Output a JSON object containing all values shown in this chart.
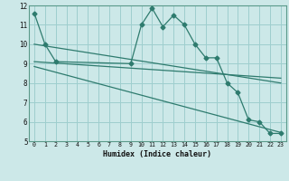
{
  "xlabel": "Humidex (Indice chaleur)",
  "bg_color": "#cce8e8",
  "line_color": "#2e7b6e",
  "grid_color": "#9ecece",
  "xlim": [
    -0.5,
    23.5
  ],
  "ylim": [
    5,
    12
  ],
  "yticks": [
    5,
    6,
    7,
    8,
    9,
    10,
    11,
    12
  ],
  "xticks": [
    0,
    1,
    2,
    3,
    4,
    5,
    6,
    7,
    8,
    9,
    10,
    11,
    12,
    13,
    14,
    15,
    16,
    17,
    18,
    19,
    20,
    21,
    22,
    23
  ],
  "line1": {
    "x": [
      0,
      1,
      2,
      9,
      10,
      11,
      12,
      13,
      14,
      15,
      16,
      17,
      18,
      19,
      20,
      21,
      22,
      23
    ],
    "y": [
      11.6,
      10.0,
      9.1,
      9.0,
      11.0,
      11.85,
      10.9,
      11.5,
      11.0,
      10.0,
      9.3,
      9.3,
      8.0,
      7.5,
      6.1,
      6.0,
      5.4,
      5.4
    ]
  },
  "line2": {
    "x": [
      0,
      23
    ],
    "y": [
      10.0,
      8.0
    ]
  },
  "line3": {
    "x": [
      0,
      23
    ],
    "y": [
      9.1,
      8.25
    ]
  },
  "line4": {
    "x": [
      0,
      23
    ],
    "y": [
      8.85,
      5.45
    ]
  }
}
